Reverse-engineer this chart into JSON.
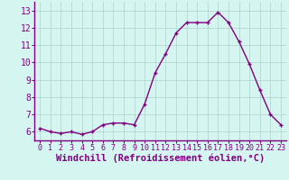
{
  "x": [
    0,
    1,
    2,
    3,
    4,
    5,
    6,
    7,
    8,
    9,
    10,
    11,
    12,
    13,
    14,
    15,
    16,
    17,
    18,
    19,
    20,
    21,
    22,
    23
  ],
  "y": [
    6.2,
    6.0,
    5.9,
    6.0,
    5.85,
    6.0,
    6.4,
    6.5,
    6.5,
    6.4,
    7.6,
    9.4,
    10.5,
    11.7,
    12.3,
    12.3,
    12.3,
    12.9,
    12.3,
    11.2,
    9.9,
    8.4,
    7.0,
    6.4
  ],
  "line_color": "#800080",
  "marker": "+",
  "marker_color": "#800080",
  "xlabel": "Windchill (Refroidissement éolien,°C)",
  "xlabel_color": "#800080",
  "bg_color": "#d4f5f0",
  "grid_color": "#b0d0cc",
  "tick_label_color": "#800080",
  "axis_color": "#800080",
  "ylim": [
    5.5,
    13.5
  ],
  "xlim": [
    -0.5,
    23.5
  ],
  "yticks": [
    6,
    7,
    8,
    9,
    10,
    11,
    12,
    13
  ],
  "xticks": [
    0,
    1,
    2,
    3,
    4,
    5,
    6,
    7,
    8,
    9,
    10,
    11,
    12,
    13,
    14,
    15,
    16,
    17,
    18,
    19,
    20,
    21,
    22,
    23
  ],
  "xtick_labels": [
    "0",
    "1",
    "2",
    "3",
    "4",
    "5",
    "6",
    "7",
    "8",
    "9",
    "10",
    "11",
    "12",
    "13",
    "14",
    "15",
    "16",
    "17",
    "18",
    "19",
    "20",
    "21",
    "22",
    "23"
  ],
  "font_size": 7,
  "xlabel_fontsize": 7.5
}
